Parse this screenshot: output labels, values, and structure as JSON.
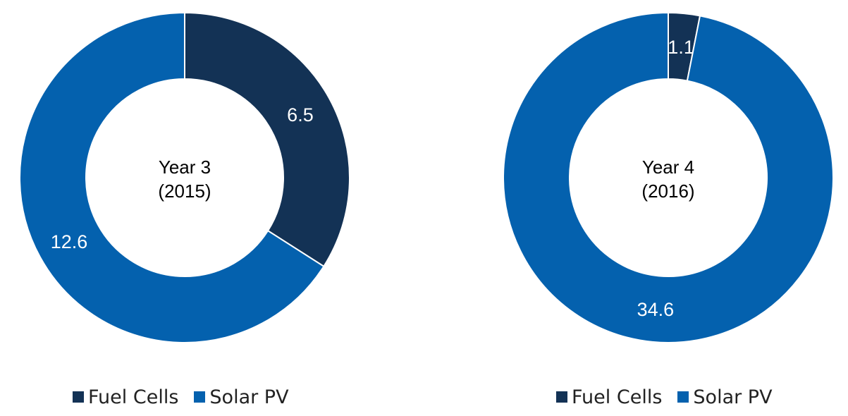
{
  "chart_data": [
    {
      "type": "pie",
      "style": "donut",
      "center_label": [
        "Year 3",
        "(2015)"
      ],
      "labels": [
        "Fuel Cells",
        "Solar PV"
      ],
      "values": [
        6.5,
        12.6
      ],
      "value_labels": [
        "6.5",
        "12.6"
      ],
      "colors": [
        "#133255",
        "#0461ae"
      ],
      "legend_position": "bottom"
    },
    {
      "type": "pie",
      "style": "donut",
      "center_label": [
        "Year 4",
        "(2016)"
      ],
      "labels": [
        "Fuel Cells",
        "Solar PV"
      ],
      "values": [
        1.1,
        34.6
      ],
      "value_labels": [
        "1.1",
        "34.6"
      ],
      "colors": [
        "#133255",
        "#0461ae"
      ],
      "legend_position": "bottom"
    }
  ],
  "legend": {
    "items": [
      {
        "label": "Fuel Cells",
        "color": "#133255"
      },
      {
        "label": "Solar PV",
        "color": "#0461ae"
      }
    ]
  }
}
